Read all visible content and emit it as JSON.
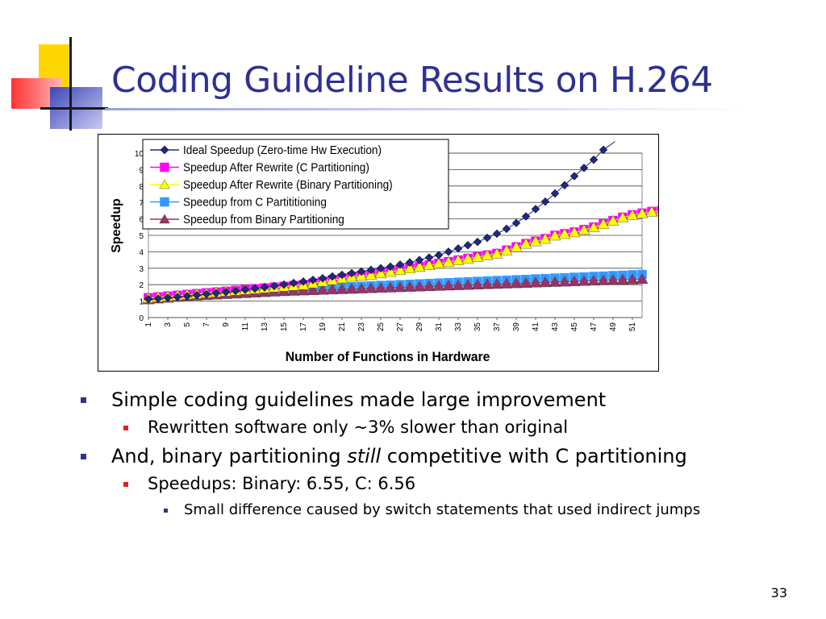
{
  "slide": {
    "title": "Coding Guideline Results on H.264",
    "page_number": "33"
  },
  "colors": {
    "title": "#2e3192",
    "ideal": "#1f2a7a",
    "after_rewrite_c": "#ff00ff",
    "after_rewrite_binary": "#ffff00",
    "from_c": "#3399ff",
    "from_binary": "#993366"
  },
  "bullets": [
    {
      "level": 1,
      "parts": [
        {
          "text": "Simple coding guidelines made large improvement",
          "italic": false
        }
      ]
    },
    {
      "level": 2,
      "parts": [
        {
          "text": "Rewritten software only ~3% slower than original",
          "italic": false
        }
      ]
    },
    {
      "level": 1,
      "parts": [
        {
          "text": "And, binary partitioning ",
          "italic": false
        },
        {
          "text": "still",
          "italic": true
        },
        {
          "text": " competitive with C partitioning",
          "italic": false
        }
      ]
    },
    {
      "level": 2,
      "parts": [
        {
          "text": "Speedups: Binary: 6.55, C: 6.56",
          "italic": false
        }
      ]
    },
    {
      "level": 3,
      "parts": [
        {
          "text": "Small difference caused by switch statements that used indirect jumps",
          "italic": false
        }
      ]
    }
  ],
  "chart_data": {
    "type": "line",
    "xlabel": "Number of Functions in Hardware",
    "ylabel": "Speedup",
    "ylim": [
      0,
      10
    ],
    "yticks": [
      0,
      1,
      2,
      3,
      4,
      5,
      6,
      7,
      8,
      9,
      10
    ],
    "x_range": [
      1,
      52
    ],
    "xtick_labels": [
      "1",
      "3",
      "5",
      "7",
      "9",
      "11",
      "13",
      "15",
      "17",
      "19",
      "21",
      "23",
      "25",
      "27",
      "29",
      "31",
      "33",
      "35",
      "37",
      "39",
      "41",
      "43",
      "45",
      "47",
      "49",
      "51"
    ],
    "grid": "horizontal",
    "legend_position": "top-left",
    "series": [
      {
        "name": "Ideal Speedup (Zero-time Hw Execution)",
        "marker": "diamond",
        "color": "#1f2a7a",
        "values": [
          1.12,
          1.15,
          1.2,
          1.25,
          1.3,
          1.36,
          1.42,
          1.48,
          1.55,
          1.62,
          1.69,
          1.76,
          1.84,
          1.92,
          2.01,
          2.1,
          2.19,
          2.29,
          2.39,
          2.5,
          2.6,
          2.7,
          2.8,
          2.9,
          3.0,
          3.1,
          3.22,
          3.35,
          3.5,
          3.65,
          3.8,
          4.0,
          4.2,
          4.4,
          4.6,
          4.85,
          5.1,
          5.4,
          5.75,
          6.15,
          6.6,
          7.05,
          7.55,
          8.05,
          8.6,
          9.1,
          9.6,
          10.2
        ]
      },
      {
        "name": "Speedup After Rewrite (C Partitioning)",
        "marker": "square",
        "color": "#ff00ff",
        "values": [
          1.2,
          1.25,
          1.3,
          1.35,
          1.4,
          1.45,
          1.5,
          1.55,
          1.6,
          1.65,
          1.7,
          1.75,
          1.8,
          1.85,
          1.9,
          1.95,
          2.0,
          2.1,
          2.2,
          2.3,
          2.4,
          2.5,
          2.55,
          2.6,
          2.7,
          2.8,
          2.9,
          3.0,
          3.1,
          3.2,
          3.3,
          3.4,
          3.5,
          3.6,
          3.7,
          3.8,
          3.9,
          4.1,
          4.3,
          4.5,
          4.65,
          4.8,
          5.0,
          5.1,
          5.2,
          5.35,
          5.5,
          5.7,
          5.9,
          6.1,
          6.25,
          6.35,
          6.45,
          6.5,
          6.55,
          6.6
        ]
      },
      {
        "name": "Speedup After Rewrite (Binary Partitioning)",
        "marker": "triangle",
        "color": "#ffff00",
        "values": [
          1.18,
          1.23,
          1.28,
          1.33,
          1.38,
          1.43,
          1.48,
          1.53,
          1.58,
          1.63,
          1.68,
          1.73,
          1.78,
          1.83,
          1.88,
          1.93,
          1.98,
          2.08,
          2.18,
          2.28,
          2.38,
          2.48,
          2.53,
          2.58,
          2.68,
          2.78,
          2.88,
          2.98,
          3.08,
          3.18,
          3.28,
          3.38,
          3.48,
          3.58,
          3.68,
          3.78,
          3.88,
          4.08,
          4.28,
          4.48,
          4.63,
          4.78,
          4.98,
          5.08,
          5.18,
          5.33,
          5.48,
          5.68,
          5.88,
          6.08,
          6.23,
          6.33,
          6.43,
          6.48,
          6.52,
          6.55
        ]
      },
      {
        "name": "Speedup from C Partititioning",
        "marker": "square",
        "color": "#3399ff",
        "values": [
          1.2,
          1.25,
          1.3,
          1.35,
          1.4,
          1.45,
          1.5,
          1.52,
          1.55,
          1.57,
          1.6,
          1.62,
          1.65,
          1.67,
          1.7,
          1.72,
          1.75,
          1.77,
          1.8,
          1.82,
          1.85,
          1.87,
          1.9,
          1.92,
          1.95,
          1.97,
          2.0,
          2.02,
          2.05,
          2.07,
          2.1,
          2.12,
          2.15,
          2.17,
          2.2,
          2.22,
          2.25,
          2.27,
          2.3,
          2.32,
          2.35,
          2.37,
          2.4,
          2.42,
          2.45,
          2.47,
          2.5,
          2.52,
          2.55,
          2.57,
          2.6,
          2.62
        ]
      },
      {
        "name": "Speedup from Binary Partitioning",
        "marker": "triangle",
        "color": "#993366",
        "values": [
          1.1,
          1.15,
          1.2,
          1.25,
          1.3,
          1.33,
          1.36,
          1.39,
          1.42,
          1.45,
          1.48,
          1.51,
          1.54,
          1.57,
          1.6,
          1.62,
          1.64,
          1.66,
          1.68,
          1.7,
          1.72,
          1.74,
          1.76,
          1.78,
          1.8,
          1.82,
          1.84,
          1.86,
          1.88,
          1.9,
          1.92,
          1.94,
          1.96,
          1.98,
          2.0,
          2.02,
          2.04,
          2.06,
          2.08,
          2.1,
          2.12,
          2.14,
          2.16,
          2.18,
          2.2,
          2.22,
          2.24,
          2.26,
          2.28,
          2.3,
          2.32,
          2.34
        ]
      }
    ]
  }
}
